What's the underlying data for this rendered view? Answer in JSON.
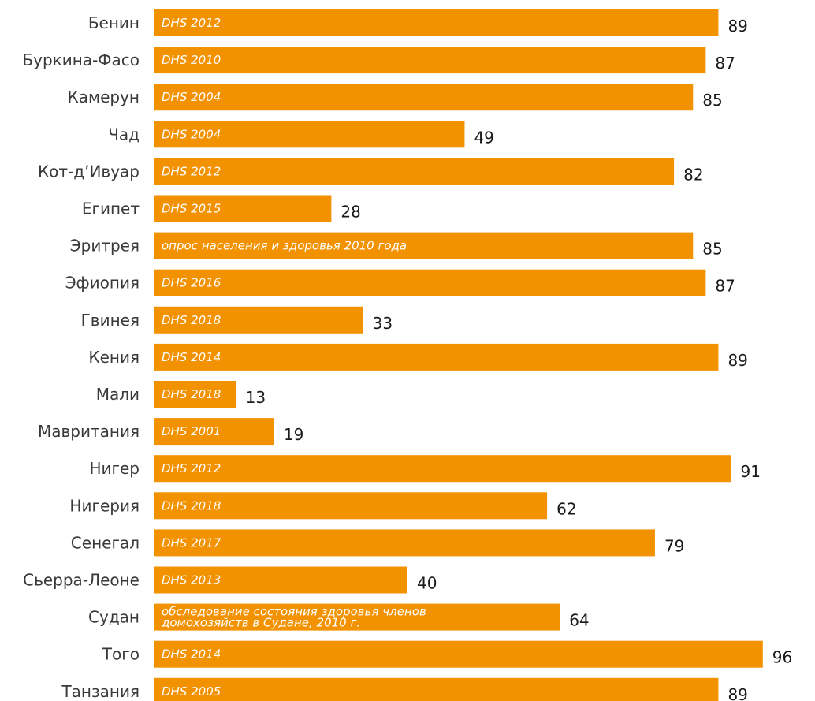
{
  "chart_data": {
    "type": "bar",
    "orientation": "horizontal",
    "bar_color": "#f39200",
    "xlim": [
      0,
      100
    ],
    "categories": [
      "Бенин",
      "Буркина-Фасо",
      "Камерун",
      "Чад",
      "Кот-д’Ивуар",
      "Египет",
      "Эритрея",
      "Эфиопия",
      "Гвинея",
      "Кения",
      "Мали",
      "Мавритания",
      "Нигер",
      "Нигерия",
      "Сенегал",
      "Сьерра-Леоне",
      "Судан",
      "Того",
      "Танзания"
    ],
    "values": [
      89,
      87,
      85,
      49,
      82,
      28,
      85,
      87,
      33,
      89,
      13,
      19,
      91,
      62,
      79,
      40,
      64,
      96,
      89
    ],
    "sources": [
      [
        "DHS 2012"
      ],
      [
        "DHS 2010"
      ],
      [
        "DHS 2004"
      ],
      [
        "DHS 2004"
      ],
      [
        "DHS 2012"
      ],
      [
        "DHS 2015"
      ],
      [
        "опрос населения и здоровья 2010 года"
      ],
      [
        "DHS 2016"
      ],
      [
        "DHS 2018"
      ],
      [
        "DHS 2014"
      ],
      [
        "DHS 2018"
      ],
      [
        "DHS 2001"
      ],
      [
        "DHS 2012"
      ],
      [
        "DHS 2018"
      ],
      [
        "DHS 2017"
      ],
      [
        "DHS 2013"
      ],
      [
        "обследование состояния здоровья членов",
        "домохозяйств в Судане, 2010 г."
      ],
      [
        "DHS 2014"
      ],
      [
        "DHS 2005"
      ]
    ]
  }
}
